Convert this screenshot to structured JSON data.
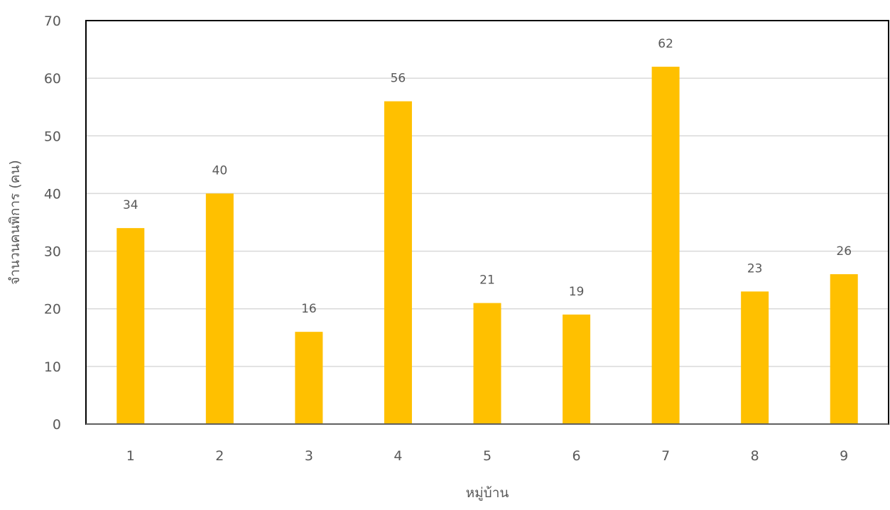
{
  "chart_data": {
    "type": "bar",
    "title": "",
    "xlabel": "หมู่บ้าน",
    "ylabel": "จำนวนคนพิการ (คน)",
    "categories": [
      "1",
      "2",
      "3",
      "4",
      "5",
      "6",
      "7",
      "8",
      "9"
    ],
    "values": [
      34,
      40,
      16,
      56,
      21,
      19,
      62,
      23,
      26
    ],
    "ylim": [
      0,
      70
    ],
    "yticks": [
      "0",
      "10",
      "20",
      "30",
      "40",
      "50",
      "60",
      "70"
    ],
    "grid": true,
    "legend": "none",
    "bar_color": "#FFC000",
    "grid_color": "#D9D9D9",
    "text_color": "#595959"
  }
}
